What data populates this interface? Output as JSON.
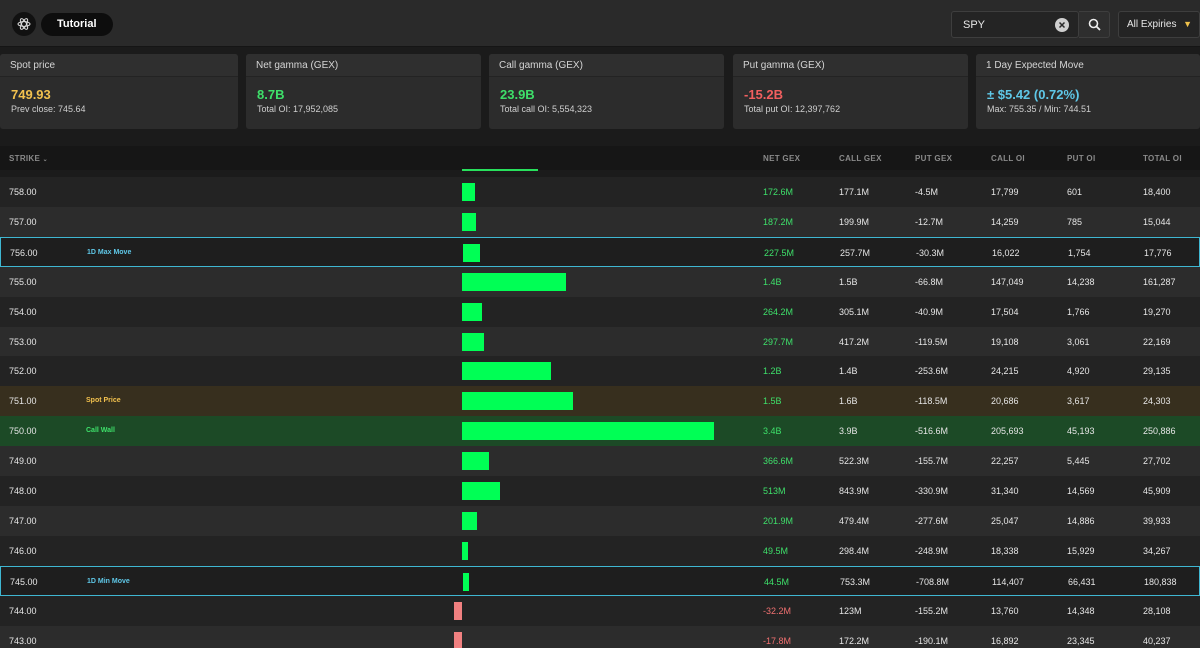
{
  "topbar": {
    "tutorial_label": "Tutorial",
    "search_value": "SPY",
    "expiry_label": "All Expiries"
  },
  "cards": [
    {
      "title": "Spot price",
      "value": "749.93",
      "sub": "Prev close: 745.64",
      "color": "#f2c14e"
    },
    {
      "title": "Net gamma (GEX)",
      "value": "8.7B",
      "sub": "Total OI: 17,952,085",
      "color": "#3ee06a"
    },
    {
      "title": "Call gamma (GEX)",
      "value": "23.9B",
      "sub": "Total call OI: 5,554,323",
      "color": "#3ee06a"
    },
    {
      "title": "Put gamma (GEX)",
      "value": "-15.2B",
      "sub": "Total put OI: 12,397,762",
      "color": "#f25f5f"
    },
    {
      "title": "1 Day Expected Move",
      "value": "± $5.42 (0.72%)",
      "sub": "Max: 755.35 / Min: 744.51",
      "color": "#5fc8e8"
    }
  ],
  "table": {
    "columns": [
      "STRIKE",
      "NET GEX",
      "CALL GEX",
      "PUT GEX",
      "CALL OI",
      "PUT OI",
      "TOTAL OI"
    ],
    "rows": [
      {
        "strike": "758.00",
        "tag": "",
        "net_gex": "172.6M",
        "net_gex_value": 172.6,
        "call_gex": "177.1M",
        "put_gex": "-4.5M",
        "call_oi": "17,799",
        "put_oi": "601",
        "total_oi": "18,400"
      },
      {
        "strike": "757.00",
        "tag": "",
        "net_gex": "187.2M",
        "net_gex_value": 187.2,
        "call_gex": "199.9M",
        "put_gex": "-12.7M",
        "call_oi": "14,259",
        "put_oi": "785",
        "total_oi": "15,044"
      },
      {
        "strike": "756.00",
        "tag": "1D Max Move",
        "net_gex": "227.5M",
        "net_gex_value": 227.5,
        "call_gex": "257.7M",
        "put_gex": "-30.3M",
        "call_oi": "16,022",
        "put_oi": "1,754",
        "total_oi": "17,776"
      },
      {
        "strike": "755.00",
        "tag": "",
        "net_gex": "1.4B",
        "net_gex_value": 1400,
        "call_gex": "1.5B",
        "put_gex": "-66.8M",
        "call_oi": "147,049",
        "put_oi": "14,238",
        "total_oi": "161,287"
      },
      {
        "strike": "754.00",
        "tag": "",
        "net_gex": "264.2M",
        "net_gex_value": 264.2,
        "call_gex": "305.1M",
        "put_gex": "-40.9M",
        "call_oi": "17,504",
        "put_oi": "1,766",
        "total_oi": "19,270"
      },
      {
        "strike": "753.00",
        "tag": "",
        "net_gex": "297.7M",
        "net_gex_value": 297.7,
        "call_gex": "417.2M",
        "put_gex": "-119.5M",
        "call_oi": "19,108",
        "put_oi": "3,061",
        "total_oi": "22,169"
      },
      {
        "strike": "752.00",
        "tag": "",
        "net_gex": "1.2B",
        "net_gex_value": 1200,
        "call_gex": "1.4B",
        "put_gex": "-253.6M",
        "call_oi": "24,215",
        "put_oi": "4,920",
        "total_oi": "29,135"
      },
      {
        "strike": "751.00",
        "tag": "Spot Price",
        "net_gex": "1.5B",
        "net_gex_value": 1500,
        "call_gex": "1.6B",
        "put_gex": "-118.5M",
        "call_oi": "20,686",
        "put_oi": "3,617",
        "total_oi": "24,303"
      },
      {
        "strike": "750.00",
        "tag": "Call Wall",
        "net_gex": "3.4B",
        "net_gex_value": 3400,
        "call_gex": "3.9B",
        "put_gex": "-516.6M",
        "call_oi": "205,693",
        "put_oi": "45,193",
        "total_oi": "250,886"
      },
      {
        "strike": "749.00",
        "tag": "",
        "net_gex": "366.6M",
        "net_gex_value": 366.6,
        "call_gex": "522.3M",
        "put_gex": "-155.7M",
        "call_oi": "22,257",
        "put_oi": "5,445",
        "total_oi": "27,702"
      },
      {
        "strike": "748.00",
        "tag": "",
        "net_gex": "513M",
        "net_gex_value": 513,
        "call_gex": "843.9M",
        "put_gex": "-330.9M",
        "call_oi": "31,340",
        "put_oi": "14,569",
        "total_oi": "45,909"
      },
      {
        "strike": "747.00",
        "tag": "",
        "net_gex": "201.9M",
        "net_gex_value": 201.9,
        "call_gex": "479.4M",
        "put_gex": "-277.6M",
        "call_oi": "25,047",
        "put_oi": "14,886",
        "total_oi": "39,933"
      },
      {
        "strike": "746.00",
        "tag": "",
        "net_gex": "49.5M",
        "net_gex_value": 49.5,
        "call_gex": "298.4M",
        "put_gex": "-248.9M",
        "call_oi": "18,338",
        "put_oi": "15,929",
        "total_oi": "34,267"
      },
      {
        "strike": "745.00",
        "tag": "1D Min Move",
        "net_gex": "44.5M",
        "net_gex_value": 44.5,
        "call_gex": "753.3M",
        "put_gex": "-708.8M",
        "call_oi": "114,407",
        "put_oi": "66,431",
        "total_oi": "180,838"
      },
      {
        "strike": "744.00",
        "tag": "",
        "net_gex": "-32.2M",
        "net_gex_value": -32.2,
        "call_gex": "123M",
        "put_gex": "-155.2M",
        "call_oi": "13,760",
        "put_oi": "14,348",
        "total_oi": "28,108"
      },
      {
        "strike": "743.00",
        "tag": "",
        "net_gex": "-17.8M",
        "net_gex_value": -17.8,
        "call_gex": "172.2M",
        "put_gex": "-190.1M",
        "call_oi": "16,892",
        "put_oi": "23,345",
        "total_oi": "40,237"
      }
    ]
  },
  "colors": {
    "positive": "#00ff55",
    "negative": "#f08080",
    "spot_tag": "#f2c14e",
    "callwall_tag": "#3ee06a",
    "move_tag": "#5fc8e8"
  }
}
